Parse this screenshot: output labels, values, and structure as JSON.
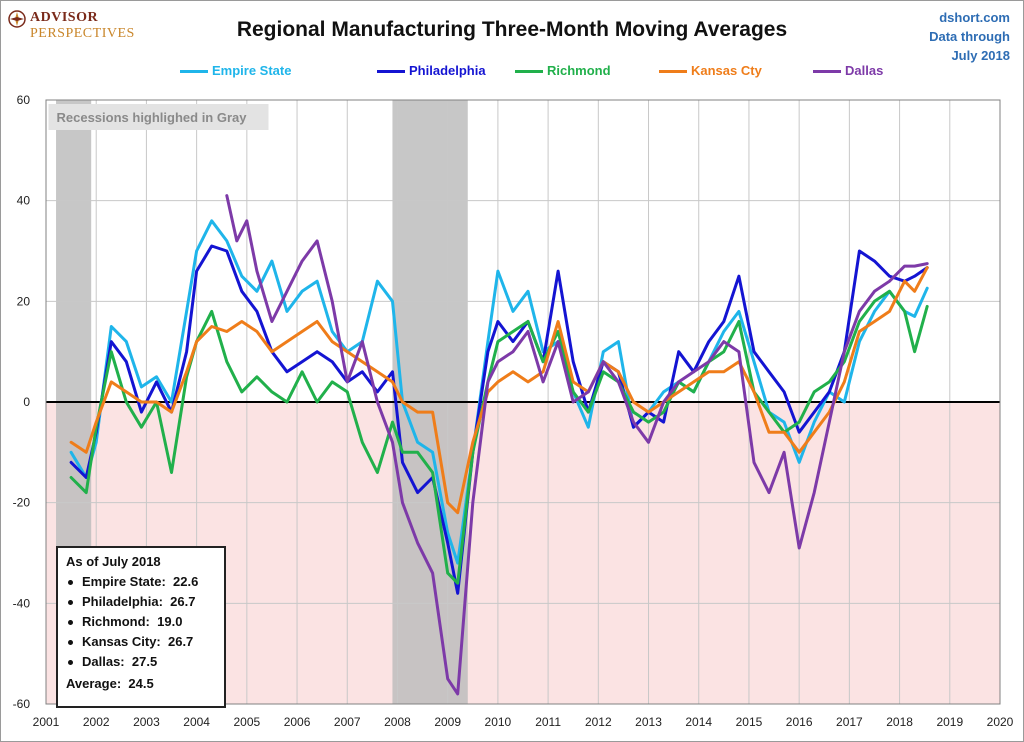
{
  "logo": {
    "line1": "ADVISOR",
    "line2": "PERSPECTIVES"
  },
  "title": "Regional Manufacturing Three-Month Moving Averages",
  "source": {
    "line1": "dshort.com",
    "line2": "Data through",
    "line3": "July 2018"
  },
  "recession_note": "Recessions highlighed in Gray",
  "info_box": {
    "title": "As of July 2018",
    "rows": [
      {
        "label": "Empire State:",
        "value": "22.6"
      },
      {
        "label": "Philadelphia:",
        "value": "26.7"
      },
      {
        "label": "Richmond:",
        "value": "19.0"
      },
      {
        "label": "Kansas City:",
        "value": "26.7"
      },
      {
        "label": "Dallas:",
        "value": "27.5"
      }
    ],
    "average_label": "Average:",
    "average_value": "24.5"
  },
  "colors": {
    "empire": "#1fb5ea",
    "philadelphia": "#1414d2",
    "richmond": "#21b04b",
    "kansas": "#ef7d1a",
    "dallas": "#7d3aa8",
    "recession": "#bdbdbd",
    "negative_band": "#fbe3e3"
  },
  "chart_data": {
    "type": "line",
    "title": "Regional Manufacturing Three-Month Moving Averages",
    "xlim": [
      2001,
      2020
    ],
    "ylim": [
      -60,
      60
    ],
    "x_ticks": [
      "2001",
      "2002",
      "2003",
      "2004",
      "2005",
      "2006",
      "2007",
      "2008",
      "2009",
      "2010",
      "2011",
      "2012",
      "2013",
      "2014",
      "2015",
      "2016",
      "2017",
      "2018",
      "2019",
      "2020"
    ],
    "y_ticks": [
      "60",
      "40",
      "20",
      "0",
      "-20",
      "-40",
      "-60"
    ],
    "grid": true,
    "legend_position": "top",
    "recessions": [
      [
        2001.2,
        2001.9
      ],
      [
        2007.9,
        2009.4
      ]
    ],
    "series": [
      {
        "name": "Empire State",
        "color_key": "empire",
        "points": [
          [
            2001.5,
            -10
          ],
          [
            2001.8,
            -15
          ],
          [
            2002.0,
            -8
          ],
          [
            2002.3,
            15
          ],
          [
            2002.6,
            12
          ],
          [
            2002.9,
            3
          ],
          [
            2003.2,
            5
          ],
          [
            2003.5,
            0
          ],
          [
            2003.8,
            18
          ],
          [
            2004.0,
            30
          ],
          [
            2004.3,
            36
          ],
          [
            2004.6,
            32
          ],
          [
            2004.9,
            25
          ],
          [
            2005.2,
            22
          ],
          [
            2005.5,
            28
          ],
          [
            2005.8,
            18
          ],
          [
            2006.1,
            22
          ],
          [
            2006.4,
            24
          ],
          [
            2006.7,
            14
          ],
          [
            2007.0,
            10
          ],
          [
            2007.3,
            12
          ],
          [
            2007.6,
            24
          ],
          [
            2007.9,
            20
          ],
          [
            2008.1,
            0
          ],
          [
            2008.4,
            -8
          ],
          [
            2008.7,
            -10
          ],
          [
            2009.0,
            -26
          ],
          [
            2009.2,
            -32
          ],
          [
            2009.5,
            -10
          ],
          [
            2009.8,
            12
          ],
          [
            2010.0,
            26
          ],
          [
            2010.3,
            18
          ],
          [
            2010.6,
            22
          ],
          [
            2010.9,
            10
          ],
          [
            2011.2,
            12
          ],
          [
            2011.5,
            2
          ],
          [
            2011.8,
            -5
          ],
          [
            2012.1,
            10
          ],
          [
            2012.4,
            12
          ],
          [
            2012.7,
            -5
          ],
          [
            2013.0,
            -2
          ],
          [
            2013.3,
            2
          ],
          [
            2013.6,
            4
          ],
          [
            2013.9,
            2
          ],
          [
            2014.2,
            8
          ],
          [
            2014.5,
            14
          ],
          [
            2014.8,
            18
          ],
          [
            2015.1,
            8
          ],
          [
            2015.4,
            -2
          ],
          [
            2015.7,
            -4
          ],
          [
            2016.0,
            -12
          ],
          [
            2016.3,
            -4
          ],
          [
            2016.6,
            2
          ],
          [
            2016.9,
            0
          ],
          [
            2017.2,
            12
          ],
          [
            2017.5,
            18
          ],
          [
            2017.8,
            22
          ],
          [
            2018.1,
            18
          ],
          [
            2018.3,
            17
          ],
          [
            2018.55,
            22.6
          ]
        ]
      },
      {
        "name": "Philadelphia",
        "color_key": "philadelphia",
        "points": [
          [
            2001.5,
            -12
          ],
          [
            2001.8,
            -15
          ],
          [
            2002.0,
            -6
          ],
          [
            2002.3,
            12
          ],
          [
            2002.6,
            8
          ],
          [
            2002.9,
            -2
          ],
          [
            2003.2,
            4
          ],
          [
            2003.5,
            -2
          ],
          [
            2003.8,
            10
          ],
          [
            2004.0,
            26
          ],
          [
            2004.3,
            31
          ],
          [
            2004.6,
            30
          ],
          [
            2004.9,
            22
          ],
          [
            2005.2,
            18
          ],
          [
            2005.5,
            10
          ],
          [
            2005.8,
            6
          ],
          [
            2006.1,
            8
          ],
          [
            2006.4,
            10
          ],
          [
            2006.7,
            8
          ],
          [
            2007.0,
            4
          ],
          [
            2007.3,
            6
          ],
          [
            2007.6,
            2
          ],
          [
            2007.9,
            6
          ],
          [
            2008.1,
            -12
          ],
          [
            2008.4,
            -18
          ],
          [
            2008.7,
            -15
          ],
          [
            2009.0,
            -28
          ],
          [
            2009.2,
            -38
          ],
          [
            2009.5,
            -10
          ],
          [
            2009.8,
            10
          ],
          [
            2010.0,
            16
          ],
          [
            2010.3,
            12
          ],
          [
            2010.6,
            16
          ],
          [
            2010.9,
            8
          ],
          [
            2011.2,
            26
          ],
          [
            2011.5,
            8
          ],
          [
            2011.8,
            -2
          ],
          [
            2012.1,
            8
          ],
          [
            2012.4,
            6
          ],
          [
            2012.7,
            -5
          ],
          [
            2013.0,
            -2
          ],
          [
            2013.3,
            -4
          ],
          [
            2013.6,
            10
          ],
          [
            2013.9,
            6
          ],
          [
            2014.2,
            12
          ],
          [
            2014.5,
            16
          ],
          [
            2014.8,
            25
          ],
          [
            2015.1,
            10
          ],
          [
            2015.4,
            6
          ],
          [
            2015.7,
            2
          ],
          [
            2016.0,
            -6
          ],
          [
            2016.3,
            -2
          ],
          [
            2016.6,
            2
          ],
          [
            2016.9,
            10
          ],
          [
            2017.2,
            30
          ],
          [
            2017.5,
            28
          ],
          [
            2017.8,
            25
          ],
          [
            2018.1,
            24
          ],
          [
            2018.3,
            25
          ],
          [
            2018.55,
            26.7
          ]
        ]
      },
      {
        "name": "Richmond",
        "color_key": "richmond",
        "points": [
          [
            2001.5,
            -15
          ],
          [
            2001.8,
            -18
          ],
          [
            2002.0,
            -5
          ],
          [
            2002.3,
            10
          ],
          [
            2002.6,
            0
          ],
          [
            2002.9,
            -5
          ],
          [
            2003.2,
            0
          ],
          [
            2003.5,
            -14
          ],
          [
            2003.8,
            5
          ],
          [
            2004.0,
            12
          ],
          [
            2004.3,
            18
          ],
          [
            2004.6,
            8
          ],
          [
            2004.9,
            2
          ],
          [
            2005.2,
            5
          ],
          [
            2005.5,
            2
          ],
          [
            2005.8,
            0
          ],
          [
            2006.1,
            6
          ],
          [
            2006.4,
            0
          ],
          [
            2006.7,
            4
          ],
          [
            2007.0,
            2
          ],
          [
            2007.3,
            -8
          ],
          [
            2007.6,
            -14
          ],
          [
            2007.9,
            -4
          ],
          [
            2008.1,
            -10
          ],
          [
            2008.4,
            -10
          ],
          [
            2008.7,
            -14
          ],
          [
            2009.0,
            -34
          ],
          [
            2009.2,
            -36
          ],
          [
            2009.5,
            -10
          ],
          [
            2009.8,
            4
          ],
          [
            2010.0,
            12
          ],
          [
            2010.3,
            14
          ],
          [
            2010.6,
            16
          ],
          [
            2010.9,
            8
          ],
          [
            2011.2,
            14
          ],
          [
            2011.5,
            2
          ],
          [
            2011.8,
            -2
          ],
          [
            2012.1,
            6
          ],
          [
            2012.4,
            4
          ],
          [
            2012.7,
            -2
          ],
          [
            2013.0,
            -4
          ],
          [
            2013.3,
            -2
          ],
          [
            2013.6,
            4
          ],
          [
            2013.9,
            2
          ],
          [
            2014.2,
            8
          ],
          [
            2014.5,
            10
          ],
          [
            2014.8,
            16
          ],
          [
            2015.1,
            2
          ],
          [
            2015.4,
            -2
          ],
          [
            2015.7,
            -6
          ],
          [
            2016.0,
            -4
          ],
          [
            2016.3,
            2
          ],
          [
            2016.6,
            4
          ],
          [
            2016.9,
            8
          ],
          [
            2017.2,
            16
          ],
          [
            2017.5,
            20
          ],
          [
            2017.8,
            22
          ],
          [
            2018.1,
            18
          ],
          [
            2018.3,
            10
          ],
          [
            2018.55,
            19.0
          ]
        ]
      },
      {
        "name": "Kansas Cty",
        "color_key": "kansas",
        "points": [
          [
            2001.5,
            -8
          ],
          [
            2001.8,
            -10
          ],
          [
            2002.0,
            -4
          ],
          [
            2002.3,
            4
          ],
          [
            2002.6,
            2
          ],
          [
            2002.9,
            0
          ],
          [
            2003.2,
            0
          ],
          [
            2003.5,
            -2
          ],
          [
            2003.8,
            6
          ],
          [
            2004.0,
            12
          ],
          [
            2004.3,
            15
          ],
          [
            2004.6,
            14
          ],
          [
            2004.9,
            16
          ],
          [
            2005.2,
            14
          ],
          [
            2005.5,
            10
          ],
          [
            2005.8,
            12
          ],
          [
            2006.1,
            14
          ],
          [
            2006.4,
            16
          ],
          [
            2006.7,
            12
          ],
          [
            2007.0,
            10
          ],
          [
            2007.3,
            8
          ],
          [
            2007.6,
            6
          ],
          [
            2007.9,
            4
          ],
          [
            2008.1,
            0
          ],
          [
            2008.4,
            -2
          ],
          [
            2008.7,
            -2
          ],
          [
            2009.0,
            -20
          ],
          [
            2009.2,
            -22
          ],
          [
            2009.5,
            -8
          ],
          [
            2009.8,
            2
          ],
          [
            2010.0,
            4
          ],
          [
            2010.3,
            6
          ],
          [
            2010.6,
            4
          ],
          [
            2010.9,
            6
          ],
          [
            2011.2,
            16
          ],
          [
            2011.5,
            4
          ],
          [
            2011.8,
            2
          ],
          [
            2012.1,
            8
          ],
          [
            2012.4,
            6
          ],
          [
            2012.7,
            0
          ],
          [
            2013.0,
            -2
          ],
          [
            2013.3,
            0
          ],
          [
            2013.6,
            2
          ],
          [
            2013.9,
            4
          ],
          [
            2014.2,
            6
          ],
          [
            2014.5,
            6
          ],
          [
            2014.8,
            8
          ],
          [
            2015.1,
            2
          ],
          [
            2015.4,
            -6
          ],
          [
            2015.7,
            -6
          ],
          [
            2016.0,
            -10
          ],
          [
            2016.3,
            -6
          ],
          [
            2016.6,
            -2
          ],
          [
            2016.9,
            4
          ],
          [
            2017.2,
            14
          ],
          [
            2017.5,
            16
          ],
          [
            2017.8,
            18
          ],
          [
            2018.1,
            24
          ],
          [
            2018.3,
            22
          ],
          [
            2018.55,
            26.7
          ]
        ]
      },
      {
        "name": "Dallas",
        "color_key": "dallas",
        "points": [
          [
            2004.6,
            41
          ],
          [
            2004.8,
            32
          ],
          [
            2005.0,
            36
          ],
          [
            2005.2,
            26
          ],
          [
            2005.5,
            16
          ],
          [
            2005.8,
            22
          ],
          [
            2006.1,
            28
          ],
          [
            2006.4,
            32
          ],
          [
            2006.7,
            20
          ],
          [
            2007.0,
            4
          ],
          [
            2007.3,
            12
          ],
          [
            2007.6,
            0
          ],
          [
            2007.9,
            -8
          ],
          [
            2008.1,
            -20
          ],
          [
            2008.4,
            -28
          ],
          [
            2008.7,
            -34
          ],
          [
            2009.0,
            -55
          ],
          [
            2009.2,
            -58
          ],
          [
            2009.5,
            -20
          ],
          [
            2009.8,
            4
          ],
          [
            2010.0,
            8
          ],
          [
            2010.3,
            10
          ],
          [
            2010.6,
            14
          ],
          [
            2010.9,
            4
          ],
          [
            2011.2,
            12
          ],
          [
            2011.5,
            0
          ],
          [
            2011.8,
            2
          ],
          [
            2012.1,
            8
          ],
          [
            2012.4,
            4
          ],
          [
            2012.7,
            -4
          ],
          [
            2013.0,
            -8
          ],
          [
            2013.3,
            0
          ],
          [
            2013.6,
            4
          ],
          [
            2013.9,
            6
          ],
          [
            2014.2,
            8
          ],
          [
            2014.5,
            12
          ],
          [
            2014.8,
            10
          ],
          [
            2015.1,
            -12
          ],
          [
            2015.4,
            -18
          ],
          [
            2015.7,
            -10
          ],
          [
            2016.0,
            -29
          ],
          [
            2016.3,
            -18
          ],
          [
            2016.6,
            -4
          ],
          [
            2016.9,
            10
          ],
          [
            2017.2,
            18
          ],
          [
            2017.5,
            22
          ],
          [
            2017.8,
            24
          ],
          [
            2018.1,
            27
          ],
          [
            2018.3,
            27
          ],
          [
            2018.55,
            27.5
          ]
        ]
      }
    ]
  }
}
